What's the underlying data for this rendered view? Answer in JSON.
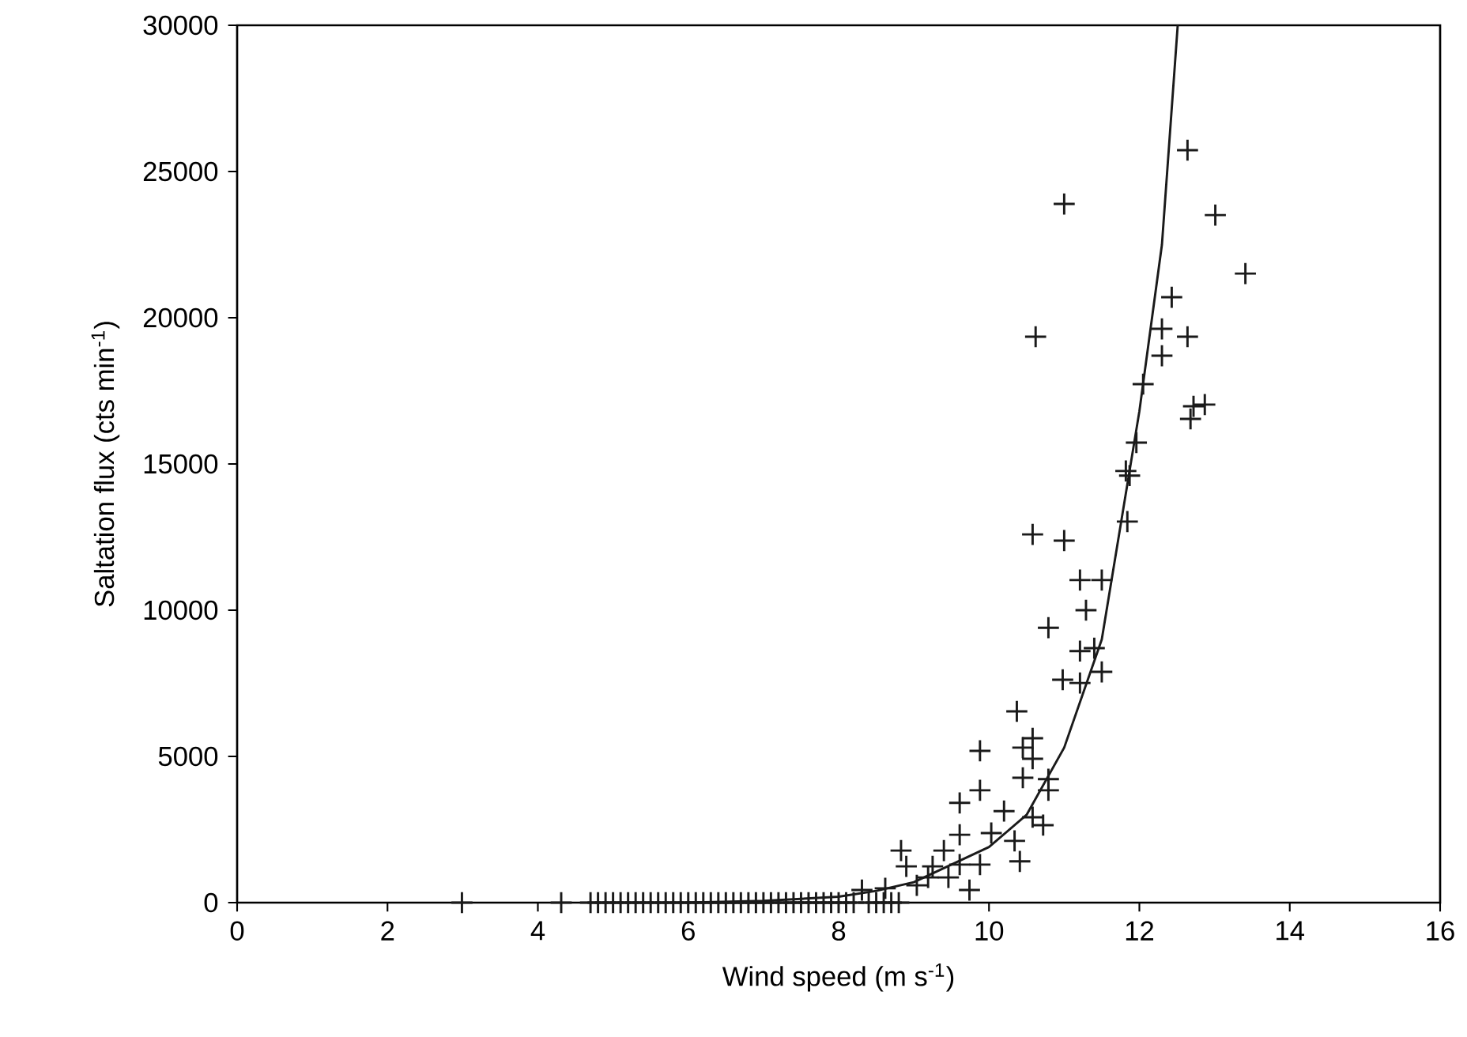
{
  "chart_data": {
    "type": "scatter",
    "xlabel": "Wind speed (m s$^{-1}$)",
    "ylabel": "Saltation flux (cts min$^{-1}$)",
    "xlim": [
      0,
      16
    ],
    "ylim": [
      0,
      30000
    ],
    "xticks": [
      0,
      2,
      4,
      6,
      8,
      10,
      12,
      14,
      16
    ],
    "yticks": [
      0,
      5000,
      10000,
      15000,
      20000,
      25000,
      30000
    ],
    "series": [
      {
        "marker": "cross",
        "color": "#1a1a1a",
        "x": [
          2.99,
          4.31,
          4.7,
          4.8,
          4.9,
          5.0,
          5.1,
          5.2,
          5.3,
          5.4,
          5.5,
          5.6,
          5.7,
          5.8,
          5.9,
          6.0,
          6.1,
          6.2,
          6.3,
          6.4,
          6.5,
          6.6,
          6.7,
          6.8,
          6.9,
          7.0,
          7.1,
          7.2,
          7.3,
          7.4,
          7.5,
          7.6,
          7.7,
          7.8,
          7.9,
          8.0,
          8.1,
          8.2,
          8.4,
          8.5,
          8.6,
          8.7,
          8.8,
          8.31,
          8.62,
          9.04,
          9.74,
          9.19,
          9.46,
          8.9,
          9.25,
          9.61,
          9.88,
          8.83,
          9.4,
          10.41,
          9.61,
          10.03,
          10.34,
          10.72,
          10.58,
          10.2,
          9.61,
          9.88,
          10.79,
          10.45,
          10.79,
          9.88,
          10.58,
          10.45,
          10.58,
          10.37,
          10.98,
          11.21,
          11.5,
          11.21,
          11.4,
          10.79,
          11.29,
          11.21,
          11.5,
          11.0,
          10.58,
          11.84,
          11.87,
          11.82,
          11.96,
          12.68,
          12.72,
          12.87,
          12.05,
          12.3,
          12.64,
          12.3,
          12.43,
          13.41,
          13.01,
          11.0,
          10.62,
          12.64
        ],
        "values": [
          0,
          0,
          0,
          0,
          0,
          0,
          0,
          0,
          0,
          0,
          0,
          0,
          0,
          0,
          0,
          0,
          0,
          0,
          0,
          0,
          0,
          0,
          0,
          0,
          0,
          0,
          0,
          0,
          0,
          0,
          0,
          0,
          0,
          0,
          0,
          0,
          0,
          0,
          0,
          0,
          0,
          0,
          0,
          430,
          490,
          590,
          430,
          860,
          860,
          1240,
          1240,
          1300,
          1300,
          1780,
          1780,
          1410,
          2320,
          2380,
          2110,
          2650,
          2920,
          3130,
          3410,
          3840,
          3840,
          4270,
          4220,
          5190,
          4920,
          5300,
          5620,
          6540,
          7620,
          7510,
          7890,
          8600,
          8700,
          9400,
          10000,
          11030,
          11030,
          12380,
          12590,
          13030,
          14600,
          14760,
          15730,
          16540,
          16970,
          17030,
          17730,
          18700,
          19350,
          19620,
          20700,
          21510,
          23510,
          23890,
          19350,
          25730
        ]
      },
      {
        "type": "line",
        "line_style": "solid",
        "color": "#1a1a1a",
        "x": [
          6,
          7,
          8,
          8.5,
          9,
          9.5,
          10,
          10.5,
          11,
          11.5,
          12,
          12.3,
          12.51
        ],
        "values": [
          0,
          60,
          200,
          400,
          700,
          1300,
          1900,
          3000,
          5300,
          9000,
          16800,
          22500,
          30000
        ]
      }
    ]
  }
}
